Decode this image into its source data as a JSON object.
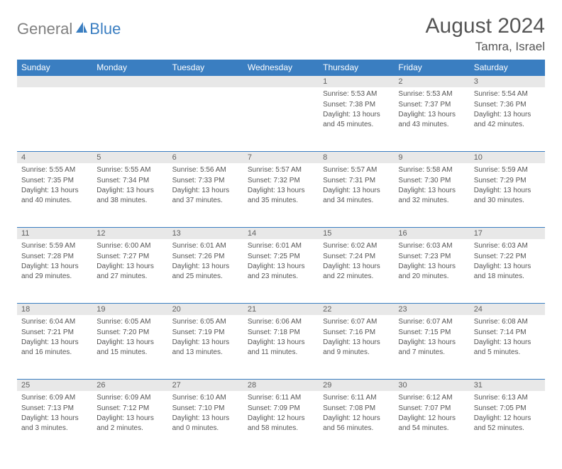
{
  "logo": {
    "general": "General",
    "blue": "Blue"
  },
  "title": "August 2024",
  "location": "Tamra, Israel",
  "colors": {
    "header_bg": "#3a7ec1",
    "header_text": "#ffffff",
    "daynum_bg": "#e8e8e8",
    "daynum_text": "#606060",
    "body_text": "#555555",
    "border": "#3a7ec1",
    "logo_gray": "#808080",
    "logo_blue": "#3a7ec1",
    "page_bg": "#ffffff"
  },
  "fonts": {
    "title_size": 30,
    "location_size": 17,
    "header_size": 12,
    "daynum_size": 11,
    "cell_size": 10
  },
  "weekdays": [
    "Sunday",
    "Monday",
    "Tuesday",
    "Wednesday",
    "Thursday",
    "Friday",
    "Saturday"
  ],
  "weeks": [
    [
      null,
      null,
      null,
      null,
      {
        "n": "1",
        "sr": "Sunrise: 5:53 AM",
        "ss": "Sunset: 7:38 PM",
        "dl": "Daylight: 13 hours and 45 minutes."
      },
      {
        "n": "2",
        "sr": "Sunrise: 5:53 AM",
        "ss": "Sunset: 7:37 PM",
        "dl": "Daylight: 13 hours and 43 minutes."
      },
      {
        "n": "3",
        "sr": "Sunrise: 5:54 AM",
        "ss": "Sunset: 7:36 PM",
        "dl": "Daylight: 13 hours and 42 minutes."
      }
    ],
    [
      {
        "n": "4",
        "sr": "Sunrise: 5:55 AM",
        "ss": "Sunset: 7:35 PM",
        "dl": "Daylight: 13 hours and 40 minutes."
      },
      {
        "n": "5",
        "sr": "Sunrise: 5:55 AM",
        "ss": "Sunset: 7:34 PM",
        "dl": "Daylight: 13 hours and 38 minutes."
      },
      {
        "n": "6",
        "sr": "Sunrise: 5:56 AM",
        "ss": "Sunset: 7:33 PM",
        "dl": "Daylight: 13 hours and 37 minutes."
      },
      {
        "n": "7",
        "sr": "Sunrise: 5:57 AM",
        "ss": "Sunset: 7:32 PM",
        "dl": "Daylight: 13 hours and 35 minutes."
      },
      {
        "n": "8",
        "sr": "Sunrise: 5:57 AM",
        "ss": "Sunset: 7:31 PM",
        "dl": "Daylight: 13 hours and 34 minutes."
      },
      {
        "n": "9",
        "sr": "Sunrise: 5:58 AM",
        "ss": "Sunset: 7:30 PM",
        "dl": "Daylight: 13 hours and 32 minutes."
      },
      {
        "n": "10",
        "sr": "Sunrise: 5:59 AM",
        "ss": "Sunset: 7:29 PM",
        "dl": "Daylight: 13 hours and 30 minutes."
      }
    ],
    [
      {
        "n": "11",
        "sr": "Sunrise: 5:59 AM",
        "ss": "Sunset: 7:28 PM",
        "dl": "Daylight: 13 hours and 29 minutes."
      },
      {
        "n": "12",
        "sr": "Sunrise: 6:00 AM",
        "ss": "Sunset: 7:27 PM",
        "dl": "Daylight: 13 hours and 27 minutes."
      },
      {
        "n": "13",
        "sr": "Sunrise: 6:01 AM",
        "ss": "Sunset: 7:26 PM",
        "dl": "Daylight: 13 hours and 25 minutes."
      },
      {
        "n": "14",
        "sr": "Sunrise: 6:01 AM",
        "ss": "Sunset: 7:25 PM",
        "dl": "Daylight: 13 hours and 23 minutes."
      },
      {
        "n": "15",
        "sr": "Sunrise: 6:02 AM",
        "ss": "Sunset: 7:24 PM",
        "dl": "Daylight: 13 hours and 22 minutes."
      },
      {
        "n": "16",
        "sr": "Sunrise: 6:03 AM",
        "ss": "Sunset: 7:23 PM",
        "dl": "Daylight: 13 hours and 20 minutes."
      },
      {
        "n": "17",
        "sr": "Sunrise: 6:03 AM",
        "ss": "Sunset: 7:22 PM",
        "dl": "Daylight: 13 hours and 18 minutes."
      }
    ],
    [
      {
        "n": "18",
        "sr": "Sunrise: 6:04 AM",
        "ss": "Sunset: 7:21 PM",
        "dl": "Daylight: 13 hours and 16 minutes."
      },
      {
        "n": "19",
        "sr": "Sunrise: 6:05 AM",
        "ss": "Sunset: 7:20 PM",
        "dl": "Daylight: 13 hours and 15 minutes."
      },
      {
        "n": "20",
        "sr": "Sunrise: 6:05 AM",
        "ss": "Sunset: 7:19 PM",
        "dl": "Daylight: 13 hours and 13 minutes."
      },
      {
        "n": "21",
        "sr": "Sunrise: 6:06 AM",
        "ss": "Sunset: 7:18 PM",
        "dl": "Daylight: 13 hours and 11 minutes."
      },
      {
        "n": "22",
        "sr": "Sunrise: 6:07 AM",
        "ss": "Sunset: 7:16 PM",
        "dl": "Daylight: 13 hours and 9 minutes."
      },
      {
        "n": "23",
        "sr": "Sunrise: 6:07 AM",
        "ss": "Sunset: 7:15 PM",
        "dl": "Daylight: 13 hours and 7 minutes."
      },
      {
        "n": "24",
        "sr": "Sunrise: 6:08 AM",
        "ss": "Sunset: 7:14 PM",
        "dl": "Daylight: 13 hours and 5 minutes."
      }
    ],
    [
      {
        "n": "25",
        "sr": "Sunrise: 6:09 AM",
        "ss": "Sunset: 7:13 PM",
        "dl": "Daylight: 13 hours and 3 minutes."
      },
      {
        "n": "26",
        "sr": "Sunrise: 6:09 AM",
        "ss": "Sunset: 7:12 PM",
        "dl": "Daylight: 13 hours and 2 minutes."
      },
      {
        "n": "27",
        "sr": "Sunrise: 6:10 AM",
        "ss": "Sunset: 7:10 PM",
        "dl": "Daylight: 13 hours and 0 minutes."
      },
      {
        "n": "28",
        "sr": "Sunrise: 6:11 AM",
        "ss": "Sunset: 7:09 PM",
        "dl": "Daylight: 12 hours and 58 minutes."
      },
      {
        "n": "29",
        "sr": "Sunrise: 6:11 AM",
        "ss": "Sunset: 7:08 PM",
        "dl": "Daylight: 12 hours and 56 minutes."
      },
      {
        "n": "30",
        "sr": "Sunrise: 6:12 AM",
        "ss": "Sunset: 7:07 PM",
        "dl": "Daylight: 12 hours and 54 minutes."
      },
      {
        "n": "31",
        "sr": "Sunrise: 6:13 AM",
        "ss": "Sunset: 7:05 PM",
        "dl": "Daylight: 12 hours and 52 minutes."
      }
    ]
  ]
}
